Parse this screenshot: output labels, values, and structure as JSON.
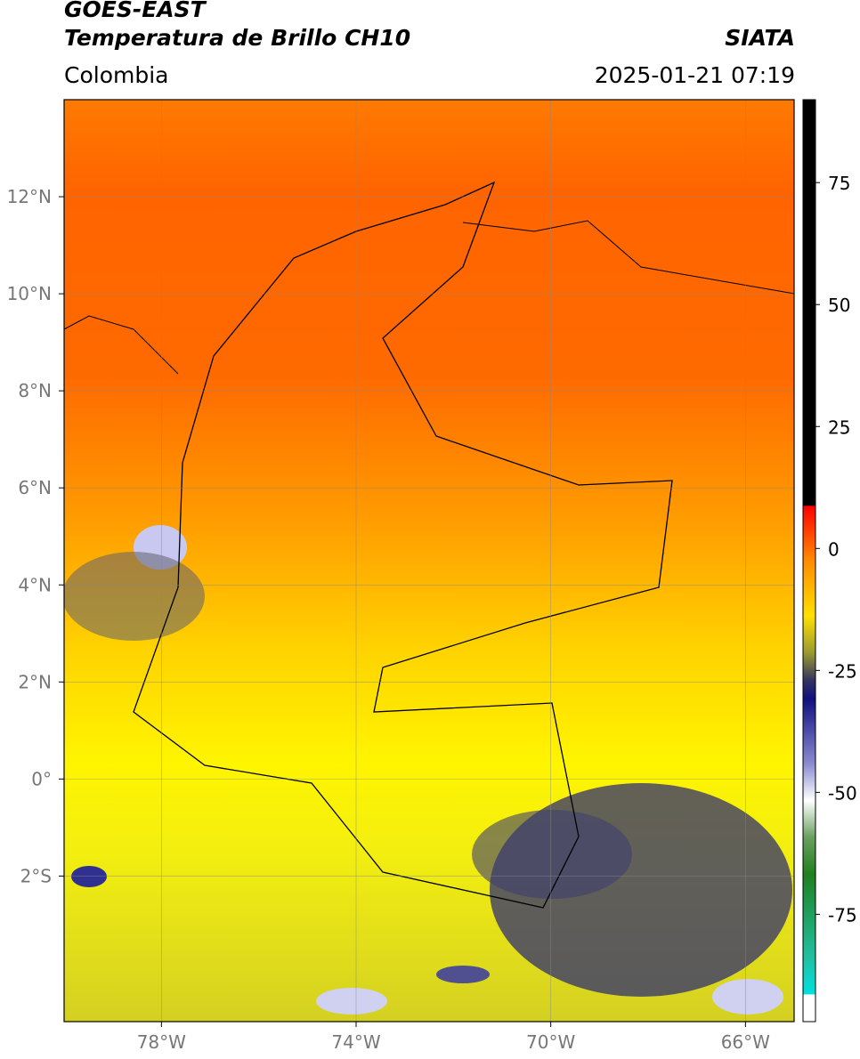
{
  "header": {
    "title": "GOES-EAST",
    "subtitle": "Temperatura de Brillo CH10",
    "org": "SIATA",
    "region": "Colombia",
    "datetime": "2025-01-21 07:19"
  },
  "map": {
    "xlim": [
      -80,
      -65
    ],
    "ylim": [
      -5,
      14
    ],
    "xticks": [
      {
        "value": -78,
        "label": "78°W"
      },
      {
        "value": -74,
        "label": "74°W"
      },
      {
        "value": -70,
        "label": "70°W"
      },
      {
        "value": -66,
        "label": "66°W"
      }
    ],
    "yticks": [
      {
        "value": 12,
        "label": "12°N"
      },
      {
        "value": 10,
        "label": "10°N"
      },
      {
        "value": 8,
        "label": "8°N"
      },
      {
        "value": 6,
        "label": "6°N"
      },
      {
        "value": 4,
        "label": "4°N"
      },
      {
        "value": 2,
        "label": "2°N"
      },
      {
        "value": 0,
        "label": "0°"
      },
      {
        "value": -2,
        "label": "2°S"
      }
    ]
  },
  "colorbar": {
    "lim": [
      -97,
      92
    ],
    "ticks": [
      75,
      50,
      25,
      0,
      -25,
      -50,
      -75
    ]
  }
}
